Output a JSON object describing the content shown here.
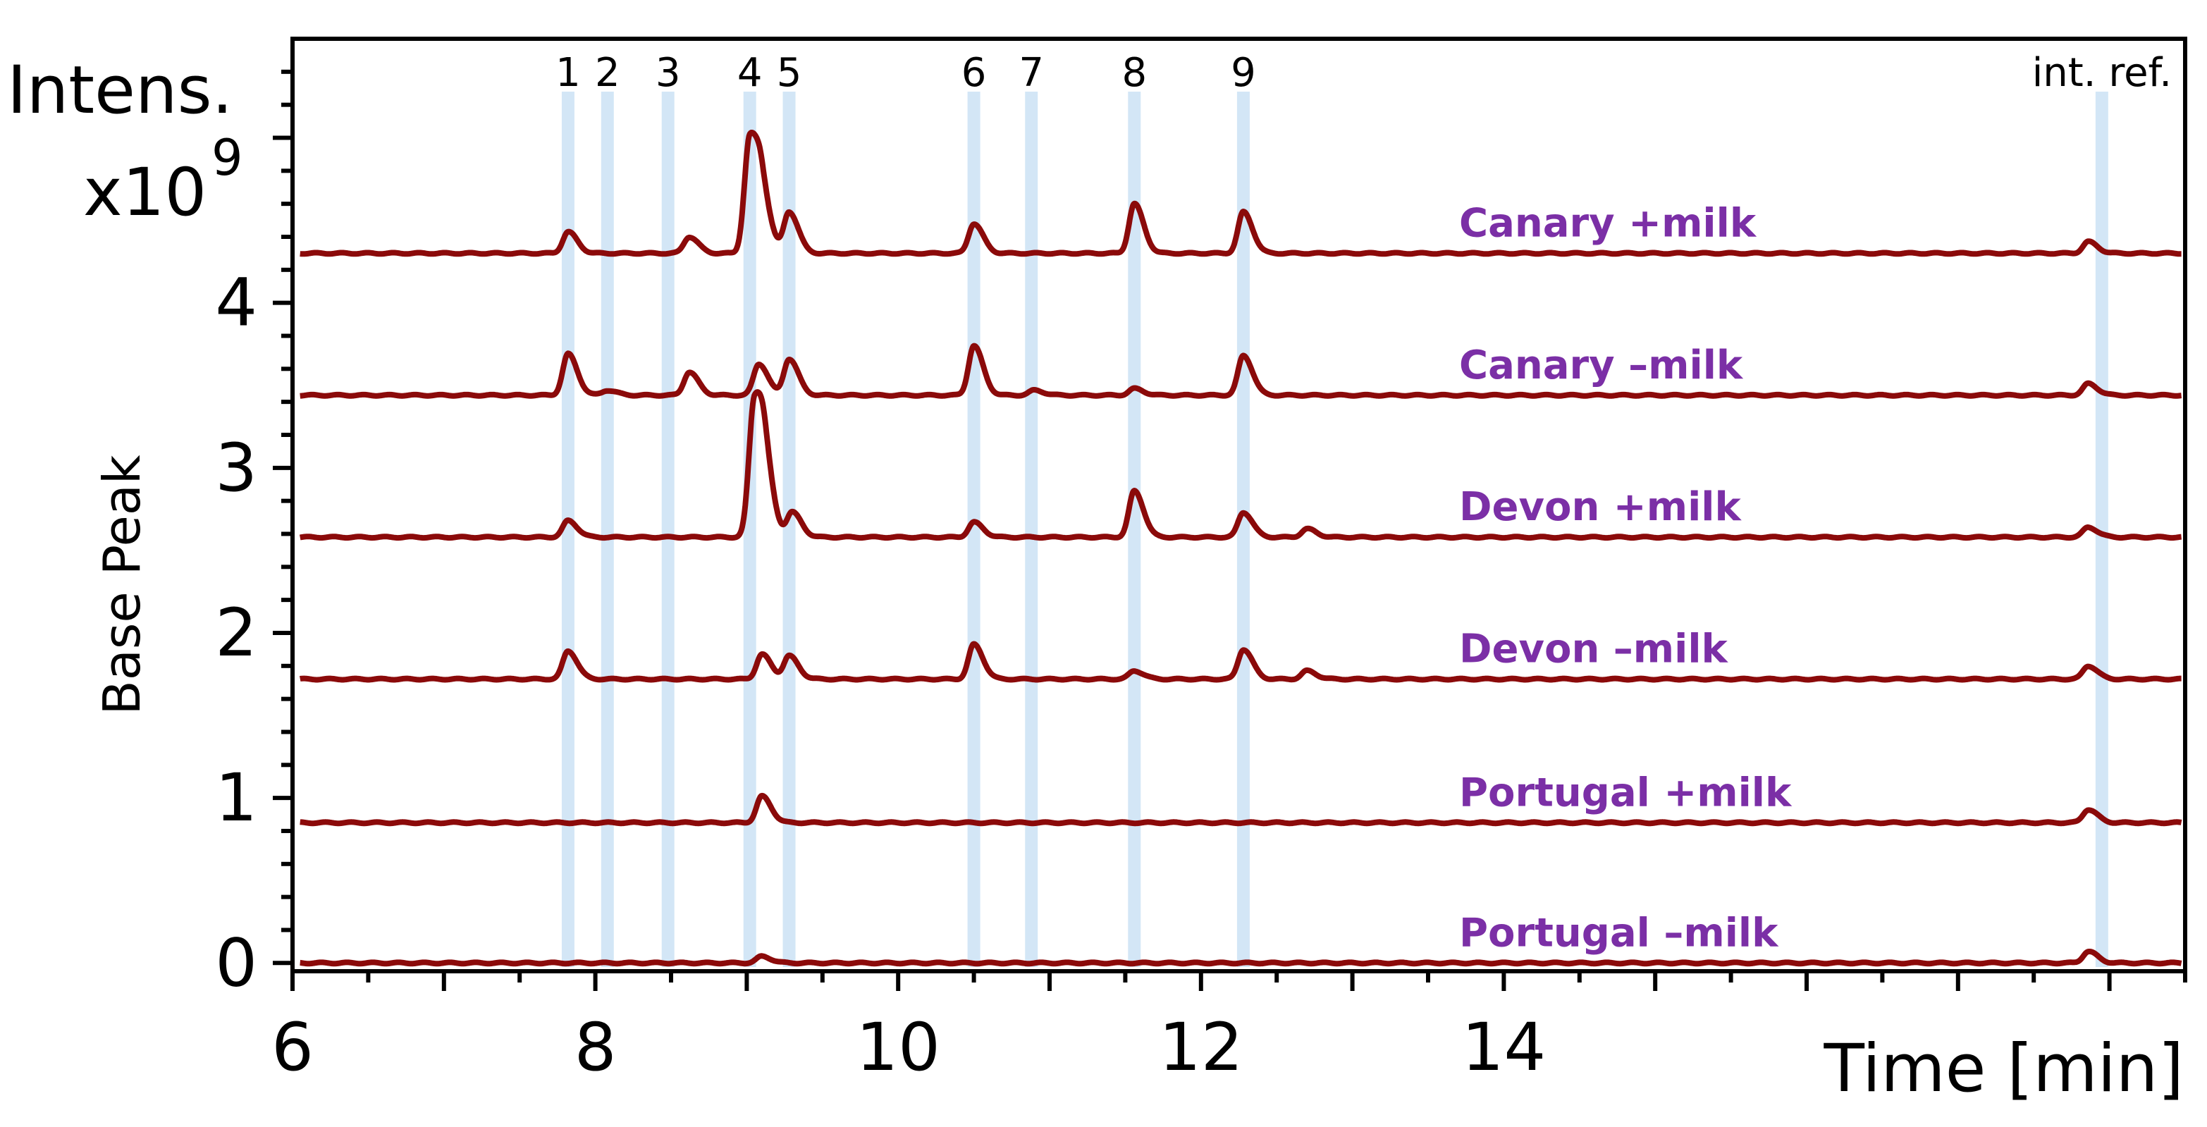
{
  "chart_data": {
    "type": "line",
    "title": "",
    "xlabel": "Time [min]",
    "ylabel": "Base Peak",
    "y_unit_label": [
      "Intens.",
      "x10",
      "9"
    ],
    "xlim": [
      6,
      18.5
    ],
    "ylim": [
      -0.05,
      5.6
    ],
    "x_ticks": [
      6,
      8,
      10,
      12,
      14
    ],
    "y_ticks": [
      0,
      1,
      2,
      3,
      4
    ],
    "line_color": "#8B0A0A",
    "label_color": "#7B2FA6",
    "highlight_color": "#D3E6F6",
    "peak_markers": [
      {
        "label": "1",
        "x": 7.82
      },
      {
        "label": "2",
        "x": 8.08
      },
      {
        "label": "3",
        "x": 8.48
      },
      {
        "label": "4",
        "x": 9.02
      },
      {
        "label": "5",
        "x": 9.28
      },
      {
        "label": "6",
        "x": 10.5
      },
      {
        "label": "7",
        "x": 10.88
      },
      {
        "label": "8",
        "x": 11.56
      },
      {
        "label": "9",
        "x": 12.28
      },
      {
        "label": "int. ref.",
        "x": 17.95
      }
    ],
    "series": [
      {
        "name": "Canary +milk",
        "baseline": 4.3,
        "peaks": [
          [
            7.82,
            0.13
          ],
          [
            8.62,
            0.1
          ],
          [
            9.02,
            0.7
          ],
          [
            9.1,
            0.28
          ],
          [
            9.28,
            0.25
          ],
          [
            10.5,
            0.18
          ],
          [
            11.56,
            0.3
          ],
          [
            12.28,
            0.25
          ],
          [
            17.86,
            0.07
          ]
        ]
      },
      {
        "name": "Canary –milk",
        "baseline": 3.44,
        "peaks": [
          [
            7.82,
            0.25
          ],
          [
            8.08,
            0.03
          ],
          [
            8.62,
            0.14
          ],
          [
            9.08,
            0.19
          ],
          [
            9.28,
            0.22
          ],
          [
            10.5,
            0.3
          ],
          [
            10.9,
            0.03
          ],
          [
            11.56,
            0.04
          ],
          [
            12.28,
            0.24
          ],
          [
            17.86,
            0.07
          ]
        ]
      },
      {
        "name": "Devon +milk",
        "baseline": 2.58,
        "peaks": [
          [
            7.82,
            0.1
          ],
          [
            9.05,
            0.82
          ],
          [
            9.12,
            0.3
          ],
          [
            9.3,
            0.15
          ],
          [
            10.5,
            0.09
          ],
          [
            11.56,
            0.28
          ],
          [
            12.28,
            0.15
          ],
          [
            12.7,
            0.05
          ],
          [
            17.86,
            0.06
          ]
        ]
      },
      {
        "name": "Devon –milk",
        "baseline": 1.72,
        "peaks": [
          [
            7.82,
            0.17
          ],
          [
            9.1,
            0.15
          ],
          [
            9.28,
            0.14
          ],
          [
            10.5,
            0.21
          ],
          [
            11.56,
            0.05
          ],
          [
            12.28,
            0.18
          ],
          [
            12.7,
            0.05
          ],
          [
            17.86,
            0.08
          ]
        ]
      },
      {
        "name": "Portugal +milk",
        "baseline": 0.85,
        "peaks": [
          [
            9.1,
            0.16
          ],
          [
            17.86,
            0.08
          ]
        ]
      },
      {
        "name": "Portugal –milk",
        "baseline": 0.0,
        "peaks": [
          [
            9.1,
            0.04
          ],
          [
            17.86,
            0.07
          ]
        ]
      }
    ]
  }
}
